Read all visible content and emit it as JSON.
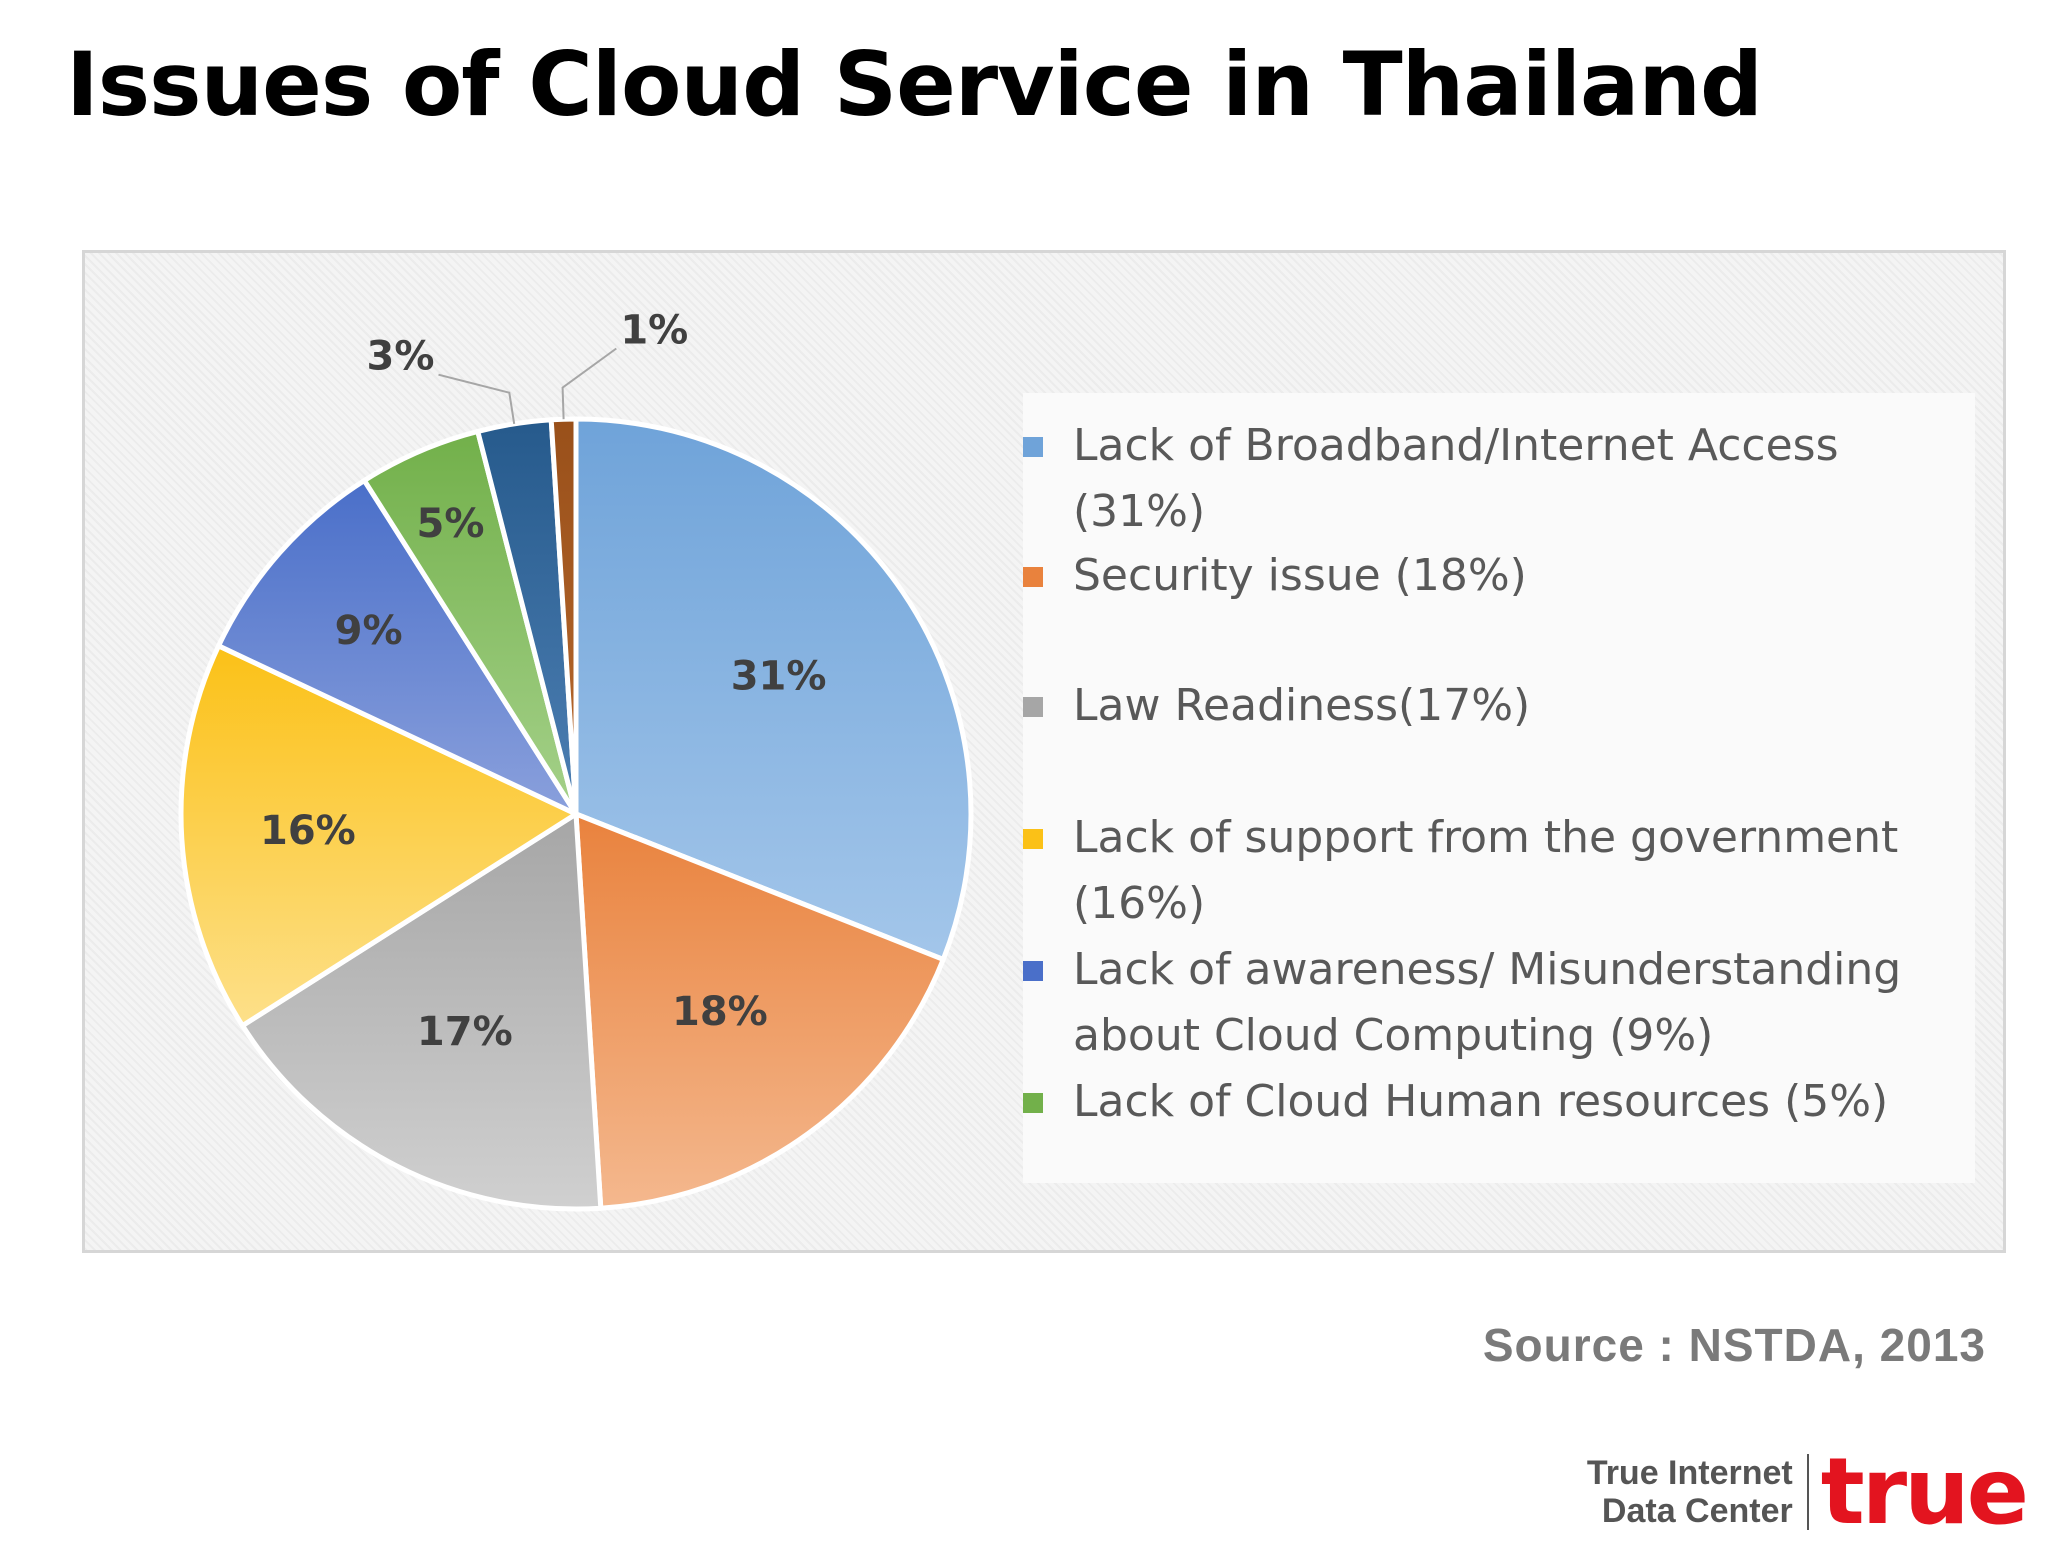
{
  "title": "Issues of Cloud Service in Thailand",
  "source": "Source : NSTDA, 2013",
  "logo": {
    "caption_line1": "True Internet",
    "caption_line2": "Data Center",
    "wordmark": "true",
    "brand_color": "#e3141f"
  },
  "chart_data": {
    "type": "pie",
    "title": "",
    "start_angle_deg": 0,
    "direction": "clockwise",
    "slices": [
      {
        "label": "Lack of Broadband/Internet Access",
        "value": 31,
        "data_label": "31%",
        "color": "#6fa3d9",
        "color_light": "#a3c6ea"
      },
      {
        "label": "Security issue",
        "value": 18,
        "data_label": "18%",
        "color": "#e9823d",
        "color_light": "#f4b88e"
      },
      {
        "label": "Law Readiness",
        "value": 17,
        "data_label": "17%",
        "color": "#a6a6a6",
        "color_light": "#d0d0d0"
      },
      {
        "label": "Lack of support from the government",
        "value": 16,
        "data_label": "16%",
        "color": "#fbc117",
        "color_light": "#fde08a"
      },
      {
        "label": "Lack of awareness/ Misunderstanding about Cloud Computing",
        "value": 9,
        "data_label": "9%",
        "color": "#4a6fc9",
        "color_light": "#8aa0dc"
      },
      {
        "label": "Lack of Cloud Human resources",
        "value": 5,
        "data_label": "5%",
        "color": "#72b04a",
        "color_light": "#a5d18a"
      },
      {
        "label": "",
        "value": 3,
        "data_label": "3%",
        "color": "#265a8c",
        "color_light": "#4d7fb3"
      },
      {
        "label": "",
        "value": 1,
        "data_label": "1%",
        "color": "#99501a",
        "color_light": "#b8692e"
      }
    ],
    "legend_position": "right",
    "legend": [
      {
        "line1": "Lack of Broadband/Internet Access",
        "line2": "(31%)",
        "color": "#6fa3d9"
      },
      {
        "line1": "Security issue (18%)",
        "line2": "",
        "color": "#e9823d"
      },
      {
        "line1": "Law Readiness(17%)",
        "line2": "",
        "color": "#a6a6a6"
      },
      {
        "line1": "Lack of support from the government",
        "line2": "(16%)",
        "color": "#fbc117"
      },
      {
        "line1": "Lack of awareness/ Misunderstanding",
        "line2": "about Cloud Computing (9%)",
        "color": "#4a6fc9"
      },
      {
        "line1": "Lack of Cloud Human resources (5%)",
        "line2": "",
        "color": "#72b04a"
      }
    ]
  }
}
